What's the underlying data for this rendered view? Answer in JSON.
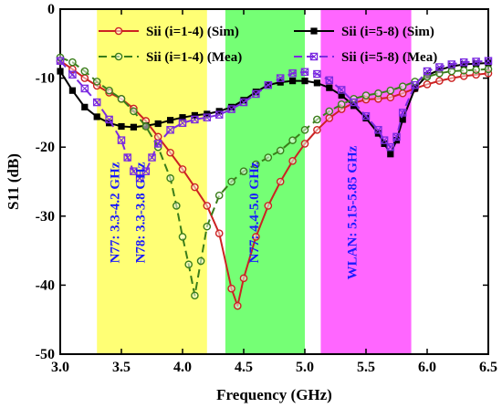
{
  "chart_data": {
    "type": "line",
    "xlabel": "Frequency (GHz)",
    "ylabel": "S11 (dB)",
    "xlim": [
      3.0,
      6.5
    ],
    "ylim": [
      -50,
      0
    ],
    "xticks": [
      "3.0",
      "3.5",
      "4.0",
      "4.5",
      "5.0",
      "5.5",
      "6.0",
      "6.5"
    ],
    "yticks": [
      "0",
      "-10",
      "-20",
      "-30",
      "-40",
      "-50"
    ],
    "legend_position": "top",
    "bands": [
      {
        "label": "N77: 3.3-4.2 GHz",
        "x0": 3.3,
        "x1": 4.2,
        "color": "#ffff66",
        "text_color": "#1a1aff"
      },
      {
        "label": "N78: 3.3-3.8 GHz",
        "x0": 3.3,
        "x1": 3.8,
        "color": "",
        "text_color": "#1a1aff"
      },
      {
        "label": "N77: 4.4-5.0 GHz",
        "x0": 4.35,
        "x1": 5.0,
        "color": "#66ff66",
        "text_color": "#1a1aff"
      },
      {
        "label": "WLAN: 5.15-5.85 GHz",
        "x0": 5.13,
        "x1": 5.87,
        "color": "#ff55ff",
        "text_color": "#1a1aff"
      }
    ],
    "series": [
      {
        "name": "Sii (i=1-4) (Sim)",
        "color": "#cc2222",
        "dash": "",
        "marker": "circle",
        "x": [
          3.0,
          3.1,
          3.2,
          3.3,
          3.4,
          3.5,
          3.6,
          3.7,
          3.8,
          3.9,
          4.0,
          4.1,
          4.2,
          4.3,
          4.4,
          4.45,
          4.5,
          4.6,
          4.7,
          4.8,
          4.9,
          5.0,
          5.1,
          5.2,
          5.3,
          5.4,
          5.5,
          5.6,
          5.7,
          5.8,
          5.9,
          6.0,
          6.1,
          6.2,
          6.3,
          6.4,
          6.5
        ],
        "values": [
          -7.5,
          -8.7,
          -10.0,
          -11.1,
          -12.1,
          -13.0,
          -14.4,
          -16.2,
          -18.5,
          -20.8,
          -23.2,
          -25.8,
          -28.5,
          -32.5,
          -40.5,
          -43.0,
          -39.0,
          -33.0,
          -28.5,
          -25.0,
          -22.0,
          -19.5,
          -17.5,
          -15.8,
          -14.5,
          -13.6,
          -13.1,
          -13.0,
          -12.8,
          -12.2,
          -11.5,
          -10.9,
          -10.4,
          -10.0,
          -9.7,
          -9.5,
          -9.3
        ]
      },
      {
        "name": "Sii (i=5-8) (Sim)",
        "color": "#000000",
        "dash": "",
        "marker": "square",
        "x": [
          3.0,
          3.1,
          3.2,
          3.3,
          3.4,
          3.5,
          3.6,
          3.7,
          3.8,
          3.9,
          4.0,
          4.1,
          4.2,
          4.3,
          4.4,
          4.5,
          4.6,
          4.7,
          4.8,
          4.9,
          5.0,
          5.1,
          5.2,
          5.3,
          5.4,
          5.5,
          5.6,
          5.65,
          5.7,
          5.75,
          5.8,
          5.9,
          6.0,
          6.1,
          6.2,
          6.3,
          6.4,
          6.5
        ],
        "values": [
          -9.0,
          -11.8,
          -14.2,
          -15.6,
          -16.5,
          -17.0,
          -17.1,
          -16.9,
          -16.6,
          -16.1,
          -15.7,
          -15.4,
          -15.2,
          -14.8,
          -14.2,
          -13.2,
          -12.0,
          -11.0,
          -10.6,
          -10.4,
          -10.4,
          -10.7,
          -11.4,
          -12.5,
          -14.0,
          -15.8,
          -18.0,
          -19.5,
          -21.0,
          -19.0,
          -16.0,
          -11.5,
          -9.6,
          -8.8,
          -8.3,
          -8.0,
          -7.9,
          -7.8
        ]
      },
      {
        "name": "Sii (i=1-4) (Mea)",
        "color": "#3a7d1a",
        "dash": "9,5",
        "marker": "circle",
        "x": [
          3.0,
          3.1,
          3.2,
          3.3,
          3.4,
          3.5,
          3.6,
          3.7,
          3.8,
          3.9,
          3.95,
          4.0,
          4.05,
          4.1,
          4.15,
          4.2,
          4.3,
          4.4,
          4.5,
          4.6,
          4.7,
          4.8,
          4.9,
          5.0,
          5.1,
          5.2,
          5.3,
          5.4,
          5.5,
          5.6,
          5.7,
          5.8,
          5.9,
          6.0,
          6.1,
          6.2,
          6.3,
          6.4,
          6.5
        ],
        "values": [
          -7.0,
          -7.7,
          -9.0,
          -10.5,
          -11.8,
          -13.0,
          -14.8,
          -17.0,
          -20.0,
          -24.5,
          -28.5,
          -33.0,
          -37.0,
          -41.5,
          -36.5,
          -31.5,
          -27.0,
          -25.0,
          -23.5,
          -22.5,
          -21.5,
          -20.5,
          -19.0,
          -17.5,
          -16.0,
          -14.8,
          -13.8,
          -13.0,
          -12.5,
          -12.2,
          -11.8,
          -11.2,
          -10.5,
          -9.8,
          -9.3,
          -9.0,
          -8.9,
          -8.8,
          -8.7
        ]
      },
      {
        "name": "Sii (i=5-8) (Mea)",
        "color": "#7b2be0",
        "dash": "9,5",
        "marker": "xbox",
        "x": [
          3.0,
          3.1,
          3.2,
          3.3,
          3.4,
          3.5,
          3.55,
          3.6,
          3.65,
          3.7,
          3.75,
          3.8,
          3.9,
          4.0,
          4.1,
          4.2,
          4.3,
          4.4,
          4.5,
          4.6,
          4.7,
          4.8,
          4.9,
          5.0,
          5.1,
          5.2,
          5.3,
          5.4,
          5.5,
          5.6,
          5.65,
          5.7,
          5.75,
          5.8,
          5.9,
          6.0,
          6.1,
          6.2,
          6.3,
          6.4,
          6.5
        ],
        "values": [
          -7.5,
          -9.5,
          -11.5,
          -13.5,
          -16.0,
          -19.0,
          -21.5,
          -23.5,
          -24.5,
          -23.5,
          -21.5,
          -19.5,
          -17.5,
          -16.5,
          -16.0,
          -15.7,
          -15.3,
          -14.5,
          -13.5,
          -12.3,
          -11.0,
          -10.0,
          -9.3,
          -9.1,
          -9.4,
          -10.3,
          -11.7,
          -13.5,
          -15.5,
          -17.5,
          -19.0,
          -20.0,
          -18.5,
          -15.0,
          -11.0,
          -9.0,
          -8.4,
          -8.0,
          -7.7,
          -7.6,
          -7.5
        ]
      }
    ]
  }
}
